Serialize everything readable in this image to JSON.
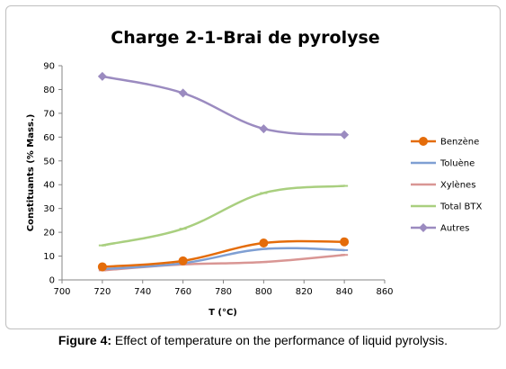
{
  "chart_data": {
    "type": "line",
    "title": "Charge 2-1-Brai de pyrolyse",
    "xlabel": "T (°C)",
    "ylabel": "Constituants (% Mass.)",
    "xlim": [
      700,
      860
    ],
    "ylim": [
      0,
      90
    ],
    "xticks": [
      "700",
      "720",
      "740",
      "760",
      "780",
      "800",
      "820",
      "840",
      "860"
    ],
    "yticks": [
      "0",
      "10",
      "20",
      "30",
      "40",
      "50",
      "60",
      "70",
      "80",
      "90"
    ],
    "x": [
      720,
      760,
      800,
      840
    ],
    "legend_position": "right",
    "grid": false,
    "series": [
      {
        "name": "Benzène",
        "values": [
          5.5,
          8.0,
          15.5,
          16.0
        ],
        "color": "#E46C0A",
        "marker": "circle"
      },
      {
        "name": "Toluène",
        "values": [
          4.5,
          7.0,
          13.0,
          12.5
        ],
        "color": "#7F9FD3",
        "marker": "dash"
      },
      {
        "name": "Xylènes",
        "values": [
          4.0,
          6.5,
          7.5,
          10.5
        ],
        "color": "#D99694",
        "marker": "dash"
      },
      {
        "name": "Total BTX",
        "values": [
          14.5,
          21.5,
          36.5,
          39.5
        ],
        "color": "#A9CF7F",
        "marker": "dash"
      },
      {
        "name": "Autres",
        "values": [
          85.5,
          78.5,
          63.5,
          61.0
        ],
        "color": "#9B8BC0",
        "marker": "diamond"
      }
    ]
  },
  "caption": {
    "label": "Figure 4:",
    "text": " Effect of temperature on the performance of  liquid pyrolysis."
  }
}
